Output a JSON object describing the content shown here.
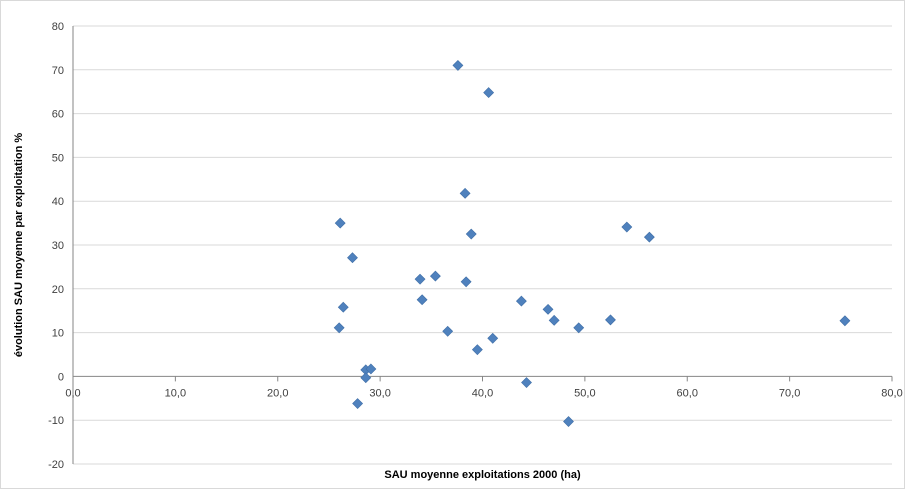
{
  "chart_data": {
    "type": "scatter",
    "title": "",
    "xlabel": "SAU moyenne exploitations 2000 (ha)",
    "ylabel": "évolution SAU moyenne par exploitation %",
    "xlim": [
      0,
      80
    ],
    "ylim": [
      -20,
      80
    ],
    "x_ticks": [
      "0,0",
      "10,0",
      "20,0",
      "30,0",
      "40,0",
      "50,0",
      "60,0",
      "70,0",
      "80,0"
    ],
    "y_ticks": [
      "-20",
      "-10",
      "0",
      "10",
      "20",
      "30",
      "40",
      "50",
      "60",
      "70",
      "80"
    ],
    "grid": true,
    "legend": "none",
    "marker": "diamond",
    "color": "#4f81bd",
    "points": [
      {
        "x": 37.6,
        "y": 71.0
      },
      {
        "x": 40.6,
        "y": 64.8
      },
      {
        "x": 38.3,
        "y": 41.8
      },
      {
        "x": 26.1,
        "y": 35.0
      },
      {
        "x": 54.1,
        "y": 34.1
      },
      {
        "x": 38.9,
        "y": 32.5
      },
      {
        "x": 56.3,
        "y": 31.8
      },
      {
        "x": 27.3,
        "y": 27.1
      },
      {
        "x": 35.4,
        "y": 22.9
      },
      {
        "x": 33.9,
        "y": 22.2
      },
      {
        "x": 38.4,
        "y": 21.6
      },
      {
        "x": 34.1,
        "y": 17.5
      },
      {
        "x": 43.8,
        "y": 17.2
      },
      {
        "x": 26.4,
        "y": 15.8
      },
      {
        "x": 46.4,
        "y": 15.3
      },
      {
        "x": 47.0,
        "y": 12.8
      },
      {
        "x": 52.5,
        "y": 12.9
      },
      {
        "x": 75.4,
        "y": 12.7
      },
      {
        "x": 26.0,
        "y": 11.1
      },
      {
        "x": 49.4,
        "y": 11.1
      },
      {
        "x": 36.6,
        "y": 10.3
      },
      {
        "x": 41.0,
        "y": 8.7
      },
      {
        "x": 39.5,
        "y": 6.1
      },
      {
        "x": 28.6,
        "y": 1.5
      },
      {
        "x": 29.1,
        "y": 1.7
      },
      {
        "x": 28.6,
        "y": -0.3
      },
      {
        "x": 44.3,
        "y": -1.4
      },
      {
        "x": 27.8,
        "y": -6.2
      },
      {
        "x": 48.4,
        "y": -10.3
      }
    ]
  }
}
